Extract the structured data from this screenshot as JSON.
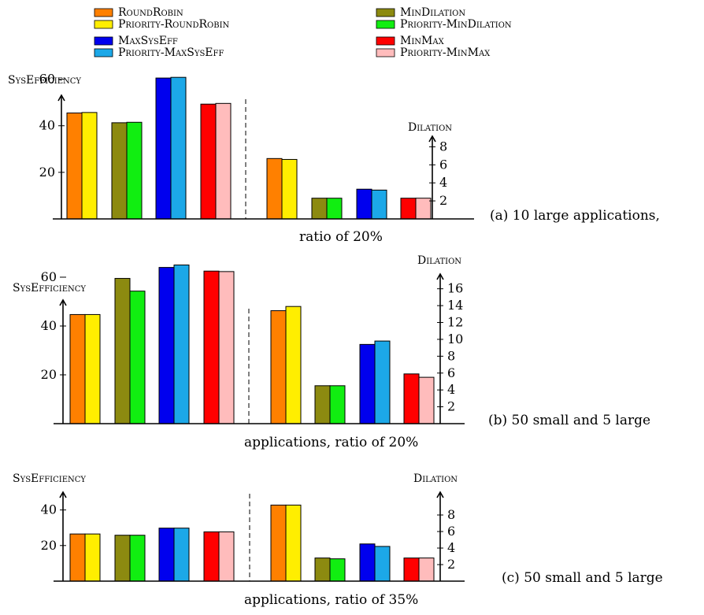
{
  "legend": [
    {
      "label": "RoundRobin",
      "color": "#ff8000"
    },
    {
      "label": "Priority-RoundRobin",
      "color": "#ffee00"
    },
    {
      "label": "MaxSysEff",
      "color": "#0000ee"
    },
    {
      "label": "Priority-MaxSysEff",
      "color": "#1ca8e8"
    },
    {
      "label": "MinDilation",
      "color": "#8c8a10"
    },
    {
      "label": "Priority-MinDilation",
      "color": "#11ee11"
    },
    {
      "label": "MinMax",
      "color": "#ff0000"
    },
    {
      "label": "Priority-MinMax",
      "color": "#ffbcbc"
    }
  ],
  "chart_data": [
    {
      "type": "bar",
      "caption_right": "(a) 10 large applications,",
      "caption_bottom": "ratio of 20%",
      "left": {
        "ylabel": "SysEfficiency",
        "ylim": [
          0,
          70
        ],
        "yticks": [
          20,
          40,
          60
        ],
        "values": [
          45.5,
          45.7,
          41.3,
          41.5,
          60.5,
          60.8,
          49.3,
          49.6
        ]
      },
      "right": {
        "ylabel": "Dilation",
        "ylim": [
          0,
          9
        ],
        "yticks": [
          2,
          4,
          6,
          8
        ],
        "values": [
          6.7,
          6.6,
          2.3,
          2.3,
          3.3,
          3.2,
          2.3,
          2.3
        ]
      }
    },
    {
      "type": "bar",
      "caption_right": "(b) 50 small and 5 large",
      "caption_bottom": "applications, ratio of 20%",
      "left": {
        "ylabel": "SysEfficiency",
        "ylim": [
          0,
          70
        ],
        "yticks": [
          20,
          40,
          60
        ],
        "values": [
          44.7,
          44.7,
          59.5,
          54.3,
          64.0,
          65.0,
          62.5,
          62.3
        ]
      },
      "right": {
        "ylabel": "Dilation",
        "ylim": [
          0,
          17
        ],
        "yticks": [
          2,
          4,
          6,
          8,
          10,
          12,
          14,
          16
        ],
        "values": [
          13.4,
          13.9,
          4.5,
          4.5,
          9.4,
          9.8,
          5.9,
          5.5
        ]
      }
    },
    {
      "type": "bar",
      "caption_right": "(c) 50 small and 5 large",
      "caption_bottom": "applications, ratio of 35%",
      "left": {
        "ylabel": "SysEfficiency",
        "ylim": [
          0,
          50
        ],
        "yticks": [
          20,
          40
        ],
        "values": [
          26.5,
          26.5,
          25.8,
          25.8,
          29.8,
          29.8,
          27.7,
          27.7
        ]
      },
      "right": {
        "ylabel": "Dilation",
        "ylim": [
          0,
          10
        ],
        "yticks": [
          2,
          4,
          6,
          8
        ],
        "values": [
          9.2,
          9.2,
          2.8,
          2.7,
          4.5,
          4.2,
          2.8,
          2.8
        ]
      }
    }
  ]
}
